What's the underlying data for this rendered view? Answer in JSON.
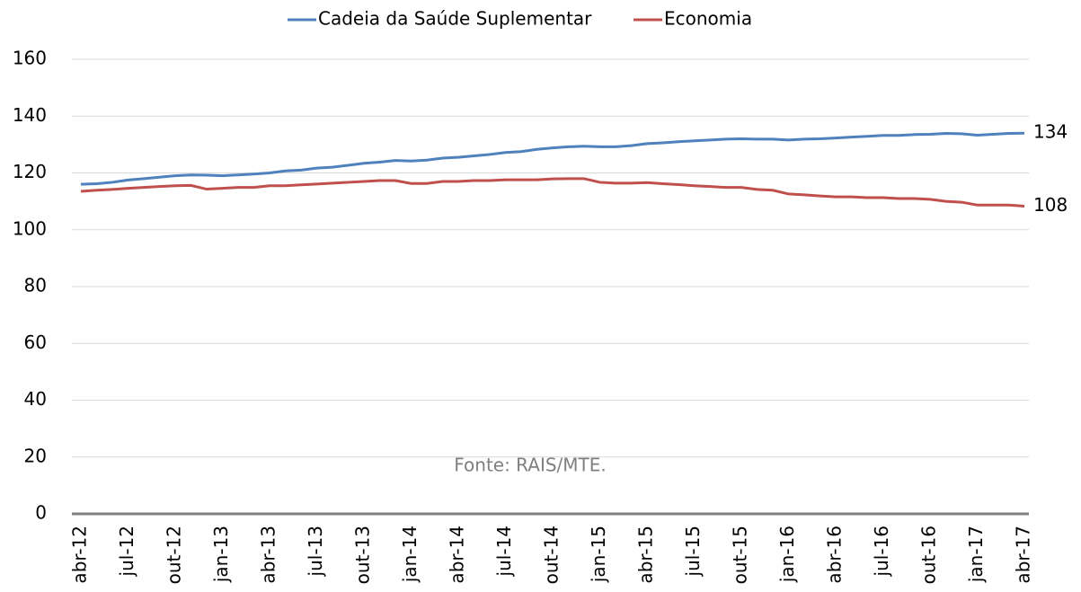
{
  "chart_data": {
    "type": "line",
    "categories": [
      "abr-12",
      null,
      null,
      "jul-12",
      null,
      null,
      "out-12",
      null,
      null,
      "jan-13",
      null,
      null,
      "abr-13",
      null,
      null,
      "jul-13",
      null,
      null,
      "out-13",
      null,
      null,
      "jan-14",
      null,
      null,
      "abr-14",
      null,
      null,
      "jul-14",
      null,
      null,
      "out-14",
      null,
      null,
      "jan-15",
      null,
      null,
      "abr-15",
      null,
      null,
      "jul-15",
      null,
      null,
      "out-15",
      null,
      null,
      "jan-16",
      null,
      null,
      "abr-16",
      null,
      null,
      "jul-16",
      null,
      null,
      "out-16",
      null,
      null,
      "jan-17",
      null,
      null,
      "abr-17"
    ],
    "series": [
      {
        "name": "Cadeia da Saúde Suplementar",
        "color": "#4f81bd",
        "end_label": "134",
        "values": [
          116,
          116.2,
          116.7,
          117.5,
          118,
          118.5,
          119,
          119.3,
          119.2,
          119,
          119.3,
          119.6,
          120,
          120.7,
          121,
          121.7,
          122,
          122.7,
          123.4,
          123.8,
          124.4,
          124.2,
          124.5,
          125.2,
          125.5,
          126,
          126.5,
          127.2,
          127.5,
          128.3,
          128.8,
          129.2,
          129.4,
          129.2,
          129.2,
          129.6,
          130.3,
          130.6,
          131,
          131.3,
          131.6,
          131.9,
          132,
          131.9,
          131.9,
          131.6,
          131.9,
          132,
          132.3,
          132.6,
          132.9,
          133.2,
          133.2,
          133.5,
          133.6,
          133.9,
          133.8,
          133.3,
          133.6,
          133.9,
          134
        ]
      },
      {
        "name": "Economia",
        "color": "#c0504d",
        "end_label": "108",
        "values": [
          113.5,
          113.9,
          114.2,
          114.6,
          114.9,
          115.2,
          115.5,
          115.6,
          114.3,
          114.6,
          114.9,
          114.9,
          115.5,
          115.5,
          115.8,
          116.1,
          116.4,
          116.7,
          117,
          117.3,
          117.3,
          116.3,
          116.3,
          117,
          117,
          117.3,
          117.3,
          117.6,
          117.6,
          117.6,
          117.9,
          118,
          118,
          116.7,
          116.4,
          116.4,
          116.6,
          116.2,
          115.9,
          115.5,
          115.2,
          114.9,
          114.9,
          114.2,
          113.9,
          112.6,
          112.3,
          111.9,
          111.6,
          111.6,
          111.3,
          111.3,
          111,
          111,
          110.7,
          110,
          109.7,
          108.7,
          108.7,
          108.7,
          108.3
        ]
      }
    ],
    "ylim": [
      0,
      160
    ],
    "yticks": [
      0,
      20,
      40,
      60,
      80,
      100,
      120,
      140,
      160
    ],
    "grid": true,
    "annotation": "Fonte: RAIS/MTE.",
    "legend": "top"
  }
}
